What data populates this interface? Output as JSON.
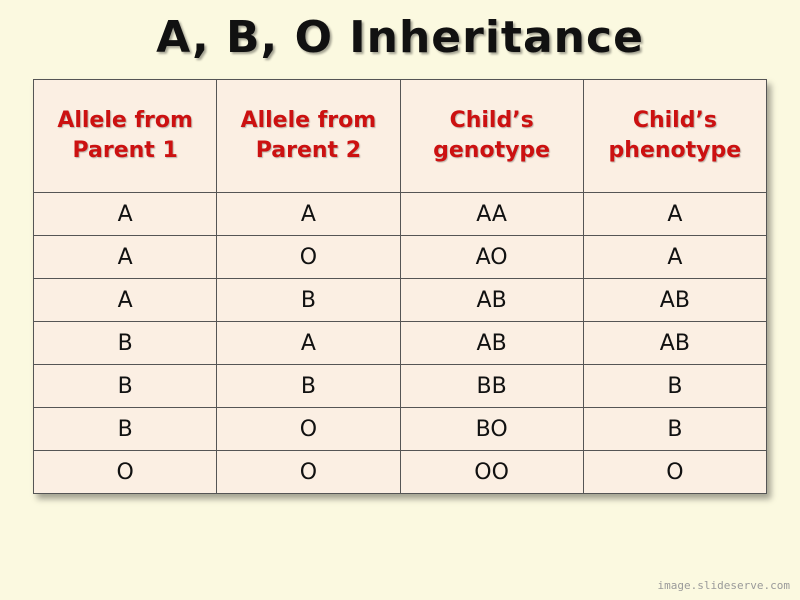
{
  "title": "A, B, O Inheritance",
  "table": {
    "headers": [
      [
        "Allele from",
        "Parent 1"
      ],
      [
        "Allele from",
        "Parent 2"
      ],
      [
        "Child’s",
        "genotype"
      ],
      [
        "Child’s",
        "phenotype"
      ]
    ],
    "rows": [
      [
        "A",
        "A",
        "AA",
        "A"
      ],
      [
        "A",
        "O",
        "AO",
        "A"
      ],
      [
        "A",
        "B",
        "AB",
        "AB"
      ],
      [
        "B",
        "A",
        "AB",
        "AB"
      ],
      [
        "B",
        "B",
        "BB",
        "B"
      ],
      [
        "B",
        "O",
        "BO",
        "B"
      ],
      [
        "O",
        "O",
        "OO",
        "O"
      ]
    ]
  },
  "watermark": "image.slideserve.com"
}
